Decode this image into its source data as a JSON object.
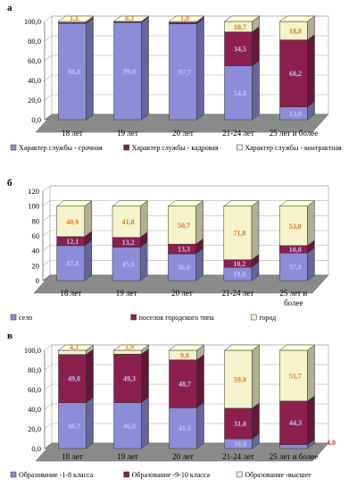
{
  "chart_data": [
    {
      "type": "bar",
      "stacked": true,
      "panel": "а",
      "categories": [
        "18 лет",
        "19 лет",
        "20 лет",
        "21-24 лет",
        "25 лет и более"
      ],
      "ylim": [
        0,
        100
      ],
      "yticks": [
        "0,0",
        "20,0",
        "40,0",
        "60,0",
        "80,0",
        "100,0"
      ],
      "series": [
        {
          "name": "Характер службы - срочная",
          "color": "#8c8cd9",
          "values": [
            98.0,
            99.0,
            97.7,
            54.8,
            13.0
          ],
          "labels": [
            "98,0",
            "99,0",
            "97,7",
            "54,8",
            "13,0"
          ]
        },
        {
          "name": "Характер службы - кадровая",
          "color": "#8b1f4e",
          "values": [
            0.9,
            0.7,
            1.3,
            34.5,
            68.2
          ],
          "labels": [
            "",
            "",
            "",
            "34,5",
            "68,2"
          ]
        },
        {
          "name": "Характер службы - контрактная",
          "color": "#f4f3c9",
          "values": [
            1.1,
            0.3,
            1.0,
            10.7,
            18.8
          ],
          "labels": [
            "1,1",
            "0,3",
            "1,0",
            "10,7",
            "18,8"
          ]
        }
      ],
      "legend_position": "bottom"
    },
    {
      "type": "bar",
      "stacked": true,
      "panel": "б",
      "categories": [
        "18 лет",
        "19 лет",
        "20 лет",
        "21-24 лет",
        "25 лет и более"
      ],
      "ylim": [
        0,
        120
      ],
      "yticks": [
        "0",
        "20",
        "40",
        "60",
        "80",
        "100",
        "120"
      ],
      "series": [
        {
          "name": "село",
          "color": "#8c8cd9",
          "values": [
            47.0,
            45.0,
            36.0,
            18.0,
            37.0
          ],
          "labels": [
            "47,0",
            "45,0",
            "36,0",
            "18,0",
            "37,0"
          ]
        },
        {
          "name": "поселок городского типа",
          "color": "#8b1f4e",
          "values": [
            12.0,
            13.0,
            13.0,
            10.0,
            10.0
          ],
          "labels": [
            "12,1",
            "13,2",
            "13,3",
            "10,2",
            "10,0"
          ]
        },
        {
          "name": "город",
          "color": "#f4f3c9",
          "values": [
            41.0,
            42.0,
            51.0,
            72.0,
            53.0
          ],
          "labels": [
            "40,9",
            "41,8",
            "50,7",
            "71,8",
            "53,0"
          ]
        }
      ],
      "legend_position": "bottom"
    },
    {
      "type": "bar",
      "stacked": true,
      "panel": "в",
      "categories": [
        "18 лет",
        "19 лет",
        "20 лет",
        "21-24 лет",
        "25 лет и более"
      ],
      "ylim": [
        0,
        100
      ],
      "yticks": [
        "0,0",
        "20,0",
        "40,0",
        "60,0",
        "80,0",
        "100,0"
      ],
      "series": [
        {
          "name": "Образование -1-8 класса",
          "color": "#8c8cd9",
          "values": [
            46.7,
            46.8,
            41.5,
            10.0,
            4.0
          ],
          "labels": [
            "46,7",
            "46,8",
            "41,5",
            "10,0",
            ""
          ]
        },
        {
          "name": "Образование -9-10 класса",
          "color": "#8b1f4e",
          "values": [
            49.0,
            49.3,
            48.7,
            31.0,
            44.3
          ],
          "labels": [
            "49,0",
            "49,3",
            "48,7",
            "31,0",
            "44,3"
          ]
        },
        {
          "name": "Образование -высшее",
          "color": "#f4f3c9",
          "values": [
            4.3,
            3.9,
            9.8,
            59.0,
            51.7
          ],
          "labels": [
            "4,3",
            "3,9",
            "9,8",
            "59,0",
            "51,7"
          ]
        }
      ],
      "outside_labels": [
        "4,0"
      ],
      "legend_position": "bottom"
    }
  ]
}
